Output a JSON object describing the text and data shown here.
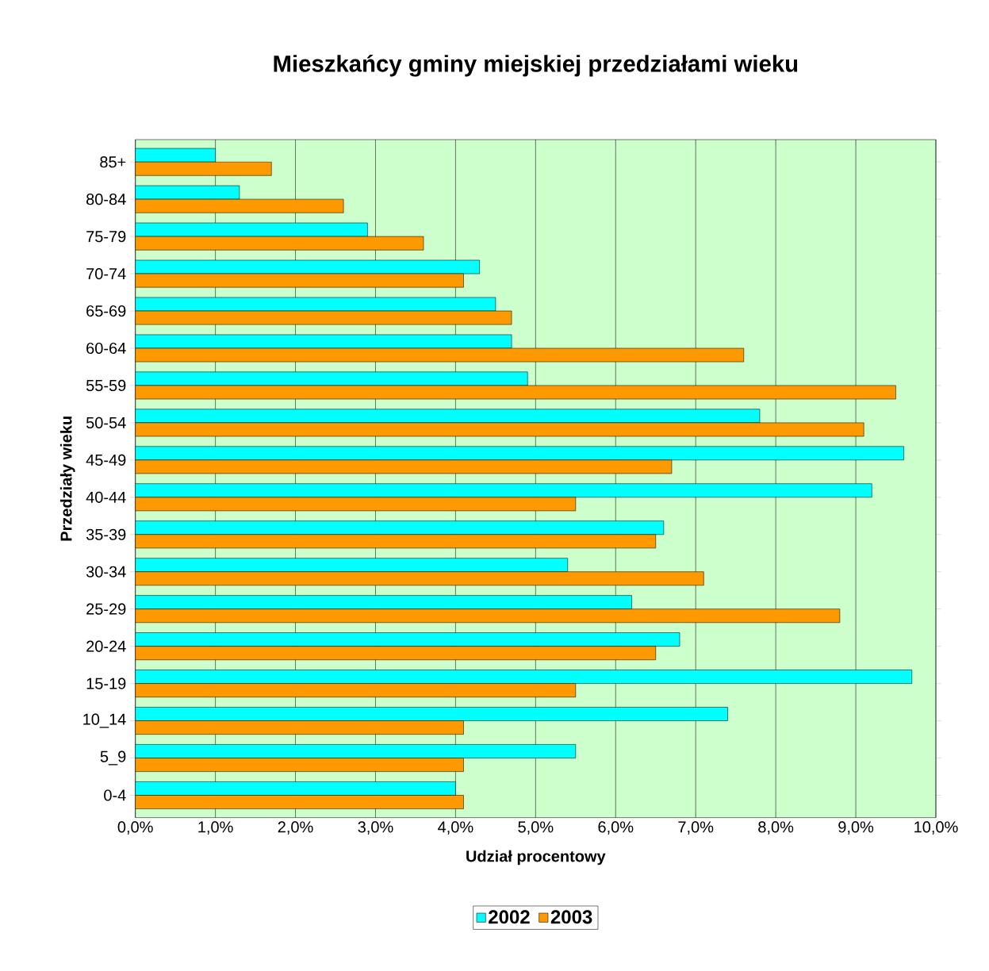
{
  "chart_data": {
    "type": "bar",
    "orientation": "horizontal",
    "title": "Mieszkańcy gminy miejskiej przedziałami wieku",
    "xlabel": "Udział procentowy",
    "ylabel": "Przedziały wieku",
    "categories": [
      "85+",
      "80-84",
      "75-79",
      "70-74",
      "65-69",
      "60-64",
      "55-59",
      "50-54",
      "45-49",
      "40-44",
      "35-39",
      "30-34",
      "25-29",
      "20-24",
      "15-19",
      "10_14",
      "5_9",
      "0-4"
    ],
    "series": [
      {
        "name": "2002",
        "color": "#00ffff",
        "values": [
          1.0,
          1.3,
          2.9,
          4.3,
          4.5,
          4.7,
          4.9,
          7.8,
          9.6,
          9.2,
          6.6,
          5.4,
          6.2,
          6.8,
          9.7,
          7.4,
          5.5,
          4.0
        ]
      },
      {
        "name": "2003",
        "color": "#ff9900",
        "values": [
          1.7,
          2.6,
          3.6,
          4.1,
          4.7,
          7.6,
          9.5,
          9.1,
          6.7,
          5.5,
          6.5,
          7.1,
          8.8,
          6.5,
          5.5,
          4.1,
          4.1,
          4.1
        ]
      }
    ],
    "xlim": [
      0,
      10
    ],
    "xticks": [
      {
        "value": 0,
        "label": "0,0%"
      },
      {
        "value": 1,
        "label": "1,0%"
      },
      {
        "value": 2,
        "label": "2,0%"
      },
      {
        "value": 3,
        "label": "3,0%"
      },
      {
        "value": 4,
        "label": "4,0%"
      },
      {
        "value": 5,
        "label": "5,0%"
      },
      {
        "value": 6,
        "label": "6,0%"
      },
      {
        "value": 7,
        "label": "7,0%"
      },
      {
        "value": 8,
        "label": "8,0%"
      },
      {
        "value": 9,
        "label": "9,0%"
      },
      {
        "value": 10,
        "label": "10,0%"
      }
    ],
    "grid": "x",
    "legend": "bottom"
  }
}
